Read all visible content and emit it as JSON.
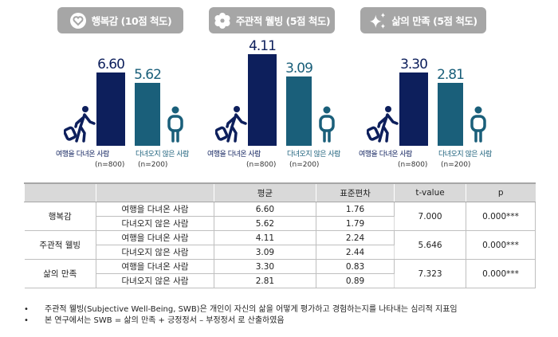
{
  "chart_data": [
    {
      "type": "bar",
      "title": "행복감 (10점 척도)",
      "icon": "heart-icon",
      "ymax": 10,
      "categories": [
        "여행을 다녀온 사람",
        "다녀오지 않은 사람"
      ],
      "n": [
        "(n=800)",
        "(n=200)"
      ],
      "values": [
        6.6,
        5.62
      ],
      "labels": [
        "6.60",
        "5.62"
      ]
    },
    {
      "type": "bar",
      "title": "주관적 웰빙 (5점 척도)",
      "icon": "flower-icon",
      "ymax": 5,
      "categories": [
        "여행을 다녀온 사람",
        "다녀오지 않은 사람"
      ],
      "n": [
        "(n=800)",
        "(n=200)"
      ],
      "values": [
        4.11,
        3.09
      ],
      "labels": [
        "4.11",
        "3.09"
      ]
    },
    {
      "type": "bar",
      "title": "삶의 만족 (5점 척도)",
      "icon": "sparkle-icon",
      "ymax": 5,
      "categories": [
        "여행을 다녀온 사람",
        "다녀오지 않은 사람"
      ],
      "n": [
        "(n=800)",
        "(n=200)"
      ],
      "values": [
        3.3,
        2.81
      ],
      "labels": [
        "3.30",
        "2.81"
      ]
    }
  ],
  "colors": {
    "traveled": "#0d1f5c",
    "not_traveled": "#1a5f7a"
  },
  "table": {
    "headers": [
      "",
      "",
      "평균",
      "표준편차",
      "t-value",
      "p"
    ],
    "groups": [
      {
        "name": "행복감",
        "t": "7.000",
        "p": "0.000***",
        "rows": [
          [
            "여행을 다녀온 사람",
            "6.60",
            "1.76"
          ],
          [
            "다녀오지 않은 사람",
            "5.62",
            "1.79"
          ]
        ]
      },
      {
        "name": "주관적 웰빙",
        "t": "5.646",
        "p": "0.000***",
        "rows": [
          [
            "여행을 다녀온 사람",
            "4.11",
            "2.24"
          ],
          [
            "다녀오지 않은 사람",
            "3.09",
            "2.44"
          ]
        ]
      },
      {
        "name": "삶의 만족",
        "t": "7.323",
        "p": "0.000***",
        "rows": [
          [
            "여행을 다녀온 사람",
            "3.30",
            "0.83"
          ],
          [
            "다녀오지 않은 사람",
            "2.81",
            "0.89"
          ]
        ]
      }
    ]
  },
  "notes": [
    "주관적 웰빙(Subjective Well-Being, SWB)은 개인이 자신의 삶을 어떻게 평가하고 경험하는지를 나타내는 심리적 지표임",
    "본 연구에서는 SWB = 삶의 만족 + 긍정정서 – 부정정서 로 산출하였음"
  ],
  "bullet": "•"
}
